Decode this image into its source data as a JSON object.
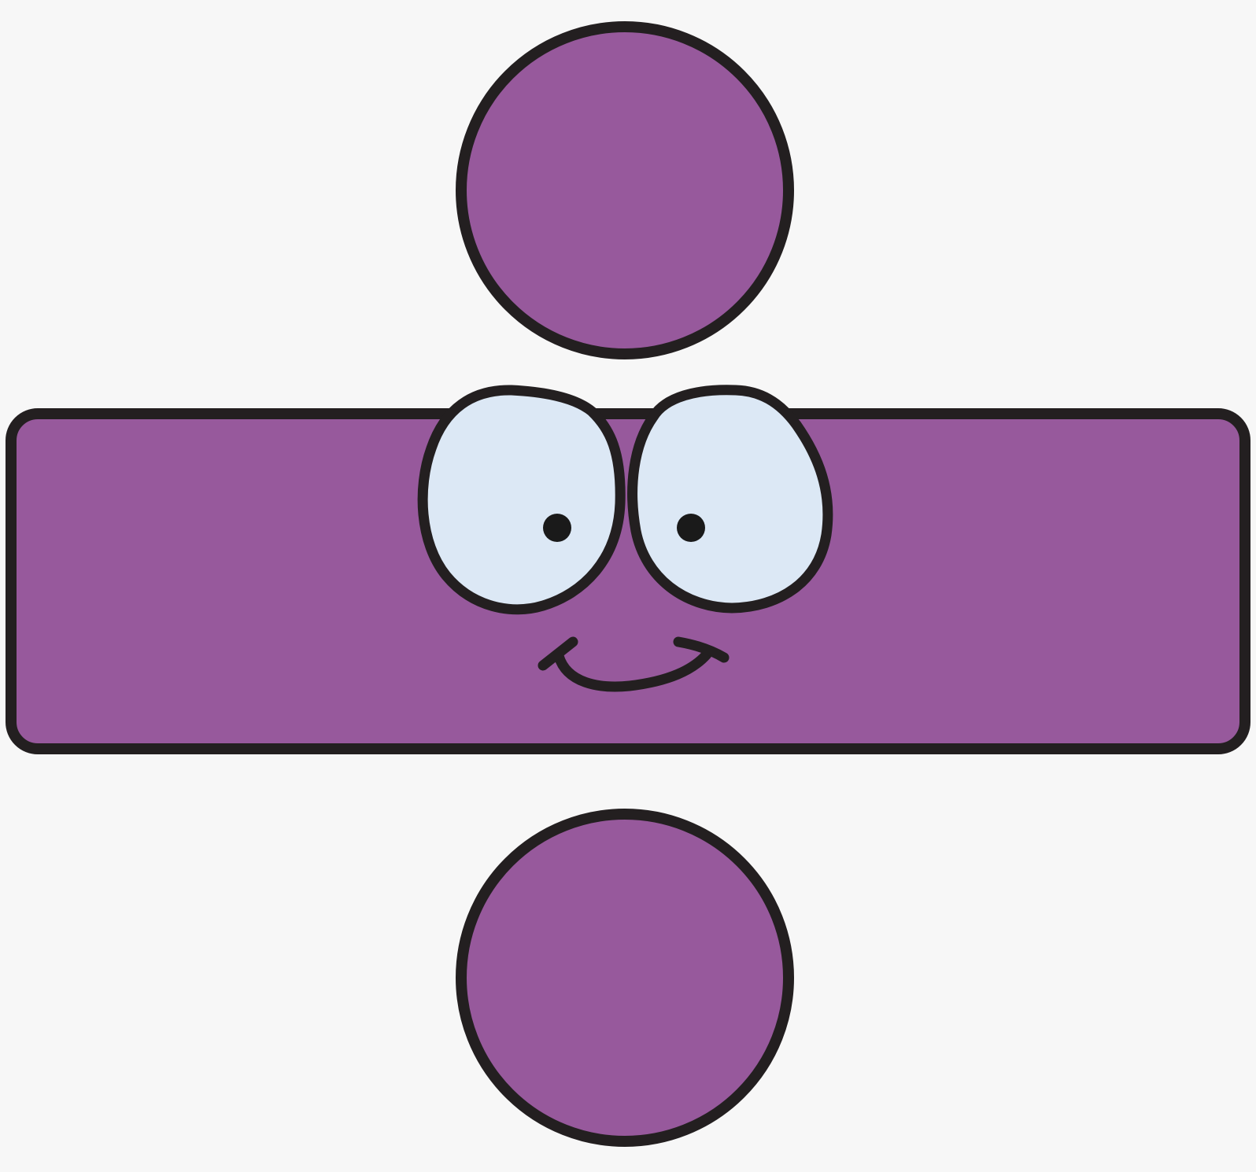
{
  "colors": {
    "background": "#f7f7f7",
    "fill": "#97599c",
    "outline": "#231f20",
    "eye_white": "#dce8f5",
    "pupil": "#1a1a1a"
  },
  "icons": {
    "character": "division-sign-character-icon",
    "top_dot": "top-dot-icon",
    "bar": "division-bar-icon",
    "bottom_dot": "bottom-dot-icon",
    "left_eye": "left-eye-icon",
    "right_eye": "right-eye-icon",
    "mouth": "smile-icon"
  }
}
